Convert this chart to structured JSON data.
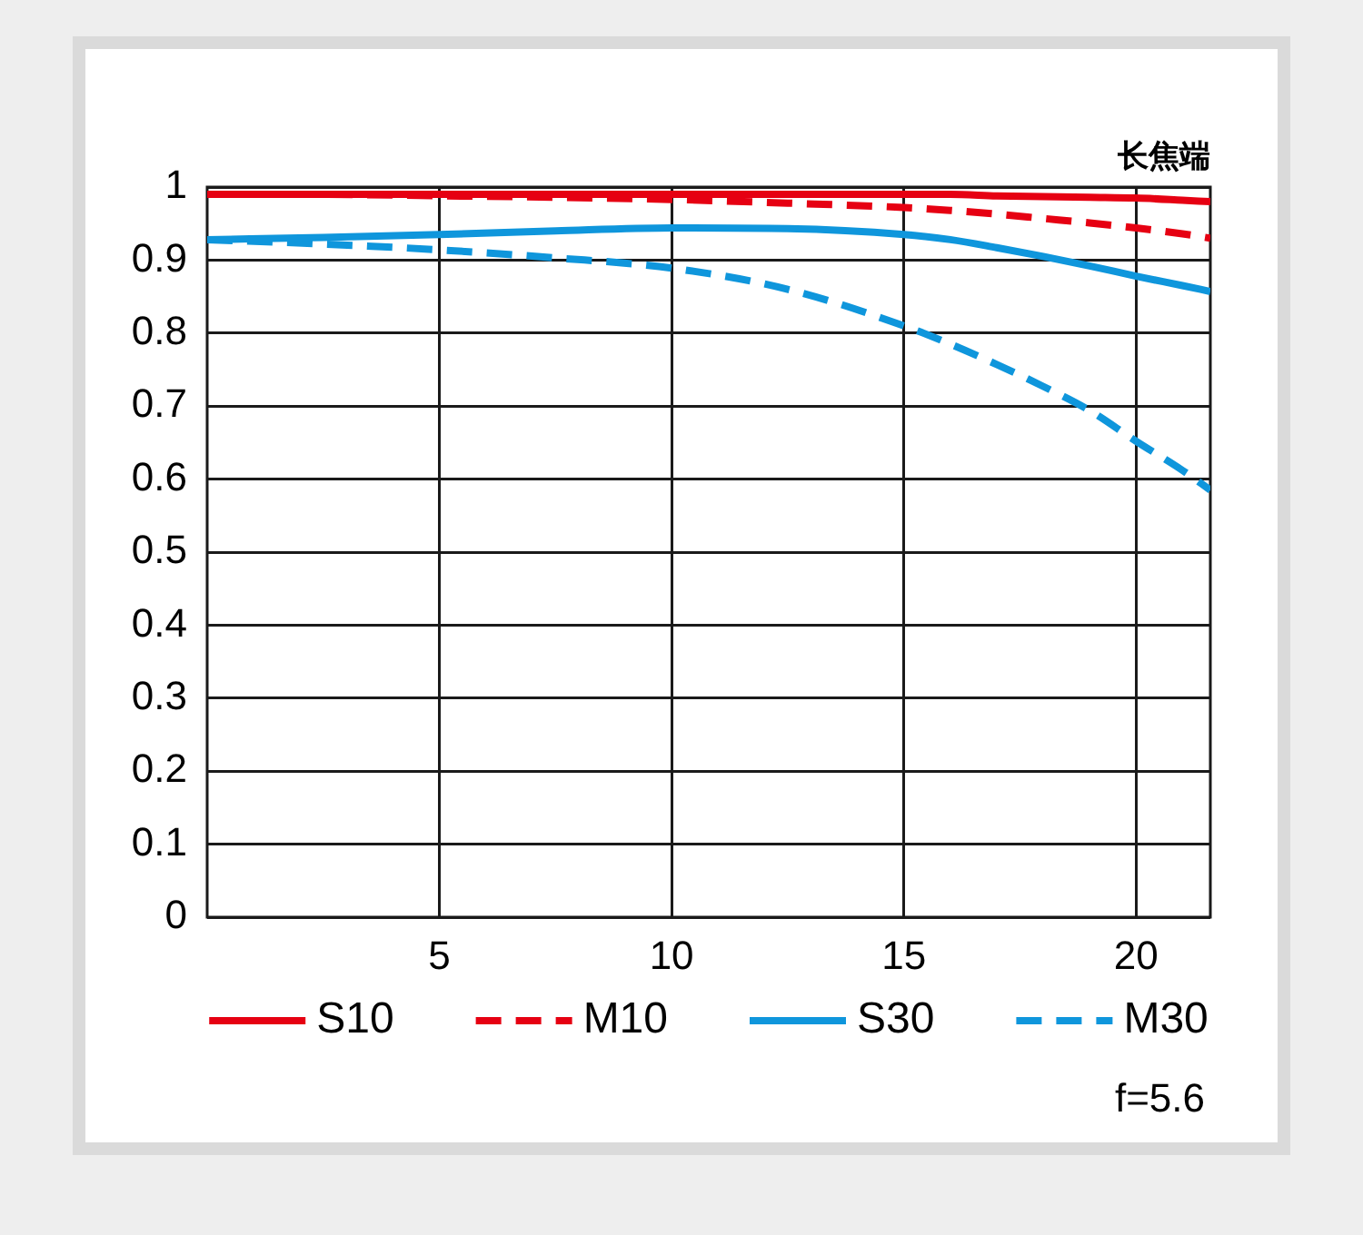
{
  "chart_data": {
    "type": "line",
    "title": "长焦端",
    "legend": "bottom",
    "grid": true,
    "marker": "none",
    "x": [
      0,
      2.5,
      5,
      7.5,
      10,
      12.5,
      15,
      16,
      17,
      18,
      19,
      20,
      21,
      21.6
    ],
    "xlim": [
      0,
      21.6
    ],
    "xticks": [
      5,
      10,
      15,
      20
    ],
    "ylim": [
      0,
      1
    ],
    "yticks": [
      0,
      0.1,
      0.2,
      0.3,
      0.4,
      0.5,
      0.6,
      0.7,
      0.8,
      0.9,
      1
    ],
    "series": [
      {
        "name": "S10",
        "color": "#e60012",
        "line_style": "solid",
        "values": [
          0.99,
          0.99,
          0.99,
          0.99,
          0.99,
          0.99,
          0.99,
          0.99,
          0.988,
          0.987,
          0.986,
          0.985,
          0.982,
          0.98
        ]
      },
      {
        "name": "M10",
        "color": "#e60012",
        "line_style": "dashed",
        "values": [
          0.99,
          0.99,
          0.988,
          0.986,
          0.983,
          0.978,
          0.972,
          0.968,
          0.963,
          0.957,
          0.951,
          0.944,
          0.936,
          0.93
        ]
      },
      {
        "name": "S30",
        "color": "#0f96dc",
        "line_style": "solid",
        "values": [
          0.928,
          0.931,
          0.935,
          0.94,
          0.944,
          0.943,
          0.935,
          0.928,
          0.917,
          0.905,
          0.892,
          0.878,
          0.865,
          0.857
        ]
      },
      {
        "name": "M30",
        "color": "#0f96dc",
        "line_style": "dashed",
        "values": [
          0.928,
          0.922,
          0.914,
          0.903,
          0.889,
          0.86,
          0.81,
          0.785,
          0.757,
          0.727,
          0.694,
          0.652,
          0.612,
          0.585
        ]
      }
    ],
    "annotations": [
      "f=5.6"
    ]
  }
}
